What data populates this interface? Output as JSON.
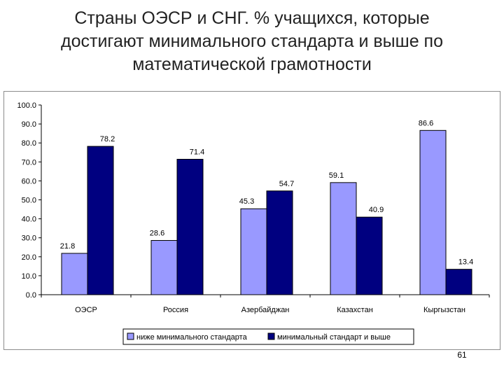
{
  "slide": {
    "title_lines": [
      "Страны ОЭСР и СНГ. % учащихся, которые",
      "достигают минимального стандарта и выше по",
      "математической грамотности"
    ],
    "page_number": "61"
  },
  "chart_data": {
    "type": "bar",
    "title": "",
    "xlabel": "",
    "ylabel": "",
    "categories": [
      "ОЭСР",
      "Россия",
      "Азербайджан",
      "Казахстан",
      "Кыргызстан"
    ],
    "series": [
      {
        "name": "ниже минимального стандарта",
        "values": [
          21.8,
          28.6,
          45.3,
          59.1,
          86.6
        ],
        "color": "#9999ff"
      },
      {
        "name": "минимальный стандарт и выше",
        "values": [
          78.2,
          71.4,
          54.7,
          40.9,
          13.4
        ],
        "color": "#000080"
      }
    ],
    "ylim": [
      0,
      100
    ],
    "yticks": [
      "0.0",
      "10.0",
      "20.0",
      "30.0",
      "40.0",
      "50.0",
      "60.0",
      "70.0",
      "80.0",
      "90.0",
      "100.0"
    ],
    "grid": false,
    "legend_position": "bottom"
  }
}
